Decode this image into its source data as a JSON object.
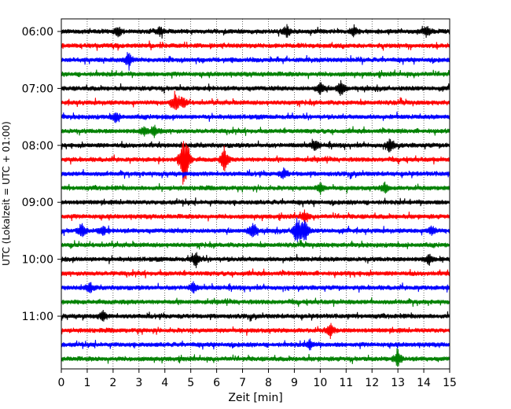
{
  "chart_data": {
    "type": "line",
    "title": "",
    "xlabel": "Zeit  [min]",
    "ylabel": "UTC (Lokalzeit = UTC + 01:00)",
    "xlim": [
      0,
      15
    ],
    "x_ticks": [
      0,
      1,
      2,
      3,
      4,
      5,
      6,
      7,
      8,
      9,
      10,
      11,
      12,
      13,
      14,
      15
    ],
    "x_tick_labels": [
      "0",
      "1",
      "2",
      "3",
      "4",
      "5",
      "6",
      "7",
      "8",
      "9",
      "10",
      "11",
      "12",
      "13",
      "14",
      "15"
    ],
    "y_tick_labels": [
      "06:00",
      "07:00",
      "08:00",
      "09:00",
      "10:00",
      "11:00"
    ],
    "y_tick_trace_index": [
      0,
      4,
      8,
      12,
      16,
      20
    ],
    "grid": "vertical dotted",
    "colors": [
      "#000000",
      "#ff0000",
      "#0000ff",
      "#008000"
    ],
    "traces_start": "06:00",
    "trace_interval_min": 15,
    "trace_count": 24,
    "events": [
      {
        "trace": 0,
        "t": 2.2,
        "amp": 0.35
      },
      {
        "trace": 0,
        "t": 3.8,
        "amp": 0.3
      },
      {
        "trace": 0,
        "t": 8.7,
        "amp": 0.4
      },
      {
        "trace": 0,
        "t": 11.3,
        "amp": 0.35
      },
      {
        "trace": 0,
        "t": 14.1,
        "amp": 0.45
      },
      {
        "trace": 2,
        "t": 2.6,
        "amp": 0.5
      },
      {
        "trace": 4,
        "t": 10.8,
        "amp": 0.6
      },
      {
        "trace": 4,
        "t": 10.0,
        "amp": 0.45
      },
      {
        "trace": 5,
        "t": 4.4,
        "amp": 0.65
      },
      {
        "trace": 5,
        "t": 4.7,
        "amp": 0.4
      },
      {
        "trace": 6,
        "t": 2.1,
        "amp": 0.35
      },
      {
        "trace": 7,
        "t": 3.2,
        "amp": 0.3
      },
      {
        "trace": 7,
        "t": 3.6,
        "amp": 0.35
      },
      {
        "trace": 8,
        "t": 9.8,
        "amp": 0.4
      },
      {
        "trace": 8,
        "t": 12.7,
        "amp": 0.6
      },
      {
        "trace": 9,
        "t": 4.7,
        "amp": 1.5
      },
      {
        "trace": 9,
        "t": 4.85,
        "amp": 1.2
      },
      {
        "trace": 9,
        "t": 6.3,
        "amp": 0.9
      },
      {
        "trace": 10,
        "t": 8.6,
        "amp": 0.35
      },
      {
        "trace": 11,
        "t": 10.0,
        "amp": 0.35
      },
      {
        "trace": 11,
        "t": 12.5,
        "amp": 0.35
      },
      {
        "trace": 13,
        "t": 9.4,
        "amp": 0.4
      },
      {
        "trace": 14,
        "t": 0.8,
        "amp": 0.5
      },
      {
        "trace": 14,
        "t": 1.6,
        "amp": 0.35
      },
      {
        "trace": 14,
        "t": 7.4,
        "amp": 0.7
      },
      {
        "trace": 14,
        "t": 9.1,
        "amp": 1.1
      },
      {
        "trace": 14,
        "t": 9.4,
        "amp": 0.9
      },
      {
        "trace": 14,
        "t": 14.3,
        "amp": 0.35
      },
      {
        "trace": 16,
        "t": 5.2,
        "amp": 0.55
      },
      {
        "trace": 16,
        "t": 14.2,
        "amp": 0.35
      },
      {
        "trace": 18,
        "t": 1.1,
        "amp": 0.35
      },
      {
        "trace": 18,
        "t": 5.1,
        "amp": 0.35
      },
      {
        "trace": 20,
        "t": 1.6,
        "amp": 0.35
      },
      {
        "trace": 21,
        "t": 10.4,
        "amp": 0.5
      },
      {
        "trace": 22,
        "t": 9.6,
        "amp": 0.35
      },
      {
        "trace": 23,
        "t": 13.0,
        "amp": 0.6
      }
    ]
  }
}
